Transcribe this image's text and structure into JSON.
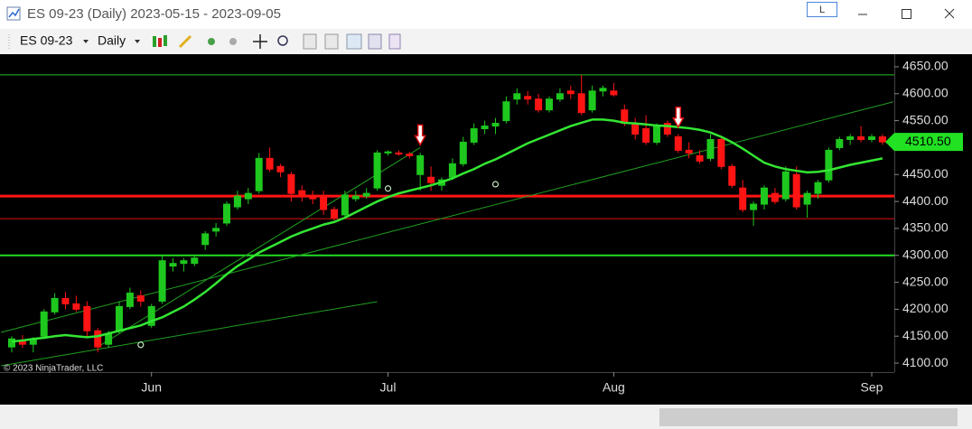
{
  "window": {
    "title": "ES 09-23 (Daily)  2023-05-15 - 2023-09-05",
    "button": "L"
  },
  "toolbar": {
    "instrument": "ES 09-23",
    "interval": "Daily"
  },
  "chart_data": {
    "type": "candlestick",
    "categories": [
      null,
      null,
      null,
      null,
      null,
      null,
      null,
      null,
      null,
      null,
      null,
      null,
      null,
      "Jun",
      null,
      null,
      null,
      null,
      null,
      null,
      null,
      null,
      null,
      null,
      null,
      null,
      null,
      null,
      null,
      null,
      null,
      null,
      null,
      null,
      null,
      "Jul",
      null,
      null,
      null,
      null,
      null,
      null,
      null,
      null,
      null,
      null,
      null,
      null,
      null,
      null,
      null,
      null,
      null,
      null,
      null,
      null,
      "Aug",
      null,
      null,
      null,
      null,
      null,
      null,
      null,
      null,
      null,
      null,
      null,
      null,
      null,
      null,
      null,
      null,
      null,
      null,
      null,
      null,
      null,
      null,
      null,
      "Sep",
      null
    ],
    "series": {
      "open": [
        4130,
        4140,
        4135,
        4150,
        4195,
        4220,
        4210,
        4205,
        4160,
        4135,
        4160,
        4205,
        4225,
        4170,
        4215,
        4280,
        4285,
        4285,
        4320,
        4345,
        4360,
        4390,
        4405,
        4420,
        4480,
        4465,
        4450,
        4420,
        4410,
        4410,
        4385,
        4375,
        4405,
        4410,
        4425,
        4490,
        4490,
        4488,
        4450,
        4445,
        4430,
        4445,
        4470,
        4510,
        4535,
        4540,
        4550,
        4590,
        4595,
        4590,
        4570,
        4590,
        4605,
        4600,
        4570,
        4605,
        4605,
        4570,
        4545,
        4535,
        4510,
        4545,
        4520,
        4495,
        4485,
        4480,
        4515,
        4465,
        4425,
        4385,
        4395,
        4415,
        4405,
        4450,
        4395,
        4415,
        4440,
        4500,
        4515,
        4520,
        4515,
        4520
      ],
      "high": [
        4150,
        4152,
        4148,
        4200,
        4230,
        4232,
        4225,
        4215,
        4165,
        4160,
        4215,
        4240,
        4235,
        4210,
        4300,
        4295,
        4295,
        4300,
        4345,
        4360,
        4400,
        4420,
        4425,
        4490,
        4500,
        4470,
        4455,
        4430,
        4420,
        4420,
        4390,
        4420,
        4420,
        4425,
        4495,
        4495,
        4495,
        4492,
        4490,
        4465,
        4445,
        4480,
        4520,
        4545,
        4550,
        4555,
        4595,
        4610,
        4605,
        4600,
        4595,
        4610,
        4615,
        4635,
        4615,
        4615,
        4620,
        4580,
        4555,
        4560,
        4545,
        4550,
        4525,
        4510,
        4495,
        4525,
        4520,
        4470,
        4440,
        4400,
        4430,
        4425,
        4465,
        4465,
        4420,
        4440,
        4500,
        4520,
        4525,
        4540,
        4525,
        4525
      ],
      "low": [
        4120,
        4128,
        4120,
        4145,
        4190,
        4200,
        4195,
        4150,
        4120,
        4128,
        4155,
        4200,
        4205,
        4165,
        4210,
        4270,
        4270,
        4280,
        4310,
        4335,
        4355,
        4385,
        4395,
        4415,
        4455,
        4445,
        4400,
        4400,
        4395,
        4375,
        4365,
        4370,
        4400,
        4405,
        4420,
        4485,
        4485,
        4480,
        4420,
        4420,
        4420,
        4440,
        4465,
        4505,
        4525,
        4525,
        4545,
        4580,
        4580,
        4565,
        4565,
        4585,
        4590,
        4560,
        4565,
        4595,
        4595,
        4540,
        4515,
        4505,
        4505,
        4520,
        4490,
        4480,
        4470,
        4475,
        4460,
        4425,
        4380,
        4355,
        4385,
        4395,
        4400,
        4385,
        4370,
        4405,
        4435,
        4495,
        4505,
        4510,
        4510,
        4505
      ],
      "close": [
        4145,
        4135,
        4145,
        4195,
        4220,
        4210,
        4200,
        4160,
        4130,
        4155,
        4205,
        4230,
        4215,
        4205,
        4290,
        4285,
        4290,
        4295,
        4340,
        4350,
        4395,
        4410,
        4415,
        4480,
        4460,
        4455,
        4415,
        4410,
        4405,
        4385,
        4370,
        4412,
        4410,
        4415,
        4490,
        4492,
        4488,
        4485,
        4485,
        4435,
        4440,
        4470,
        4510,
        4535,
        4540,
        4545,
        4585,
        4600,
        4590,
        4570,
        4590,
        4600,
        4600,
        4565,
        4605,
        4610,
        4598,
        4545,
        4525,
        4510,
        4540,
        4525,
        4495,
        4490,
        4475,
        4515,
        4465,
        4430,
        4385,
        4395,
        4425,
        4400,
        4455,
        4390,
        4415,
        4435,
        4495,
        4515,
        4520,
        4515,
        4520,
        4510.5
      ]
    },
    "up_color": "#1ec81e",
    "down_color": "#ff1414",
    "ylim": [
      4085,
      4670
    ],
    "yticks": [
      {
        "value": 4100,
        "label": "4100.00"
      },
      {
        "value": 4150,
        "label": "4150.00"
      },
      {
        "value": 4200,
        "label": "4200.00"
      },
      {
        "value": 4250,
        "label": "4250.00"
      },
      {
        "value": 4300,
        "label": "4300.00"
      },
      {
        "value": 4350,
        "label": "4350.00"
      },
      {
        "value": 4400,
        "label": "4400.00"
      },
      {
        "value": 4450,
        "label": "4450.00"
      },
      {
        "value": 4500,
        "label": "4500.00"
      },
      {
        "value": 4550,
        "label": "4550.00"
      },
      {
        "value": 4600,
        "label": "4600.00"
      },
      {
        "value": 4650,
        "label": "4650.00"
      }
    ],
    "moving_average": {
      "color": "#33e633",
      "values": [
        4140,
        4142,
        4145,
        4147,
        4150,
        4152,
        4150,
        4148,
        4150,
        4155,
        4160,
        4165,
        4170,
        4178,
        4185,
        4195,
        4205,
        4218,
        4232,
        4248,
        4265,
        4280,
        4292,
        4305,
        4315,
        4325,
        4335,
        4343,
        4350,
        4357,
        4362,
        4370,
        4380,
        4390,
        4400,
        4408,
        4415,
        4420,
        4425,
        4430,
        4436,
        4443,
        4452,
        4460,
        4470,
        4478,
        4488,
        4498,
        4508,
        4516,
        4524,
        4532,
        4540,
        4546,
        4552,
        4552,
        4550,
        4546,
        4545,
        4543,
        4541,
        4540,
        4538,
        4536,
        4533,
        4528,
        4520,
        4510,
        4498,
        4485,
        4472,
        4465,
        4460,
        4457,
        4454,
        4455,
        4458,
        4463,
        4468,
        4472,
        4476,
        4480
      ]
    },
    "levels": [
      {
        "value": 4635,
        "color": "#1fbf1f",
        "width": 1
      },
      {
        "value": 4410,
        "color": "#ff1414",
        "width": 3
      },
      {
        "value": 4368,
        "color": "#e01010",
        "width": 1
      },
      {
        "value": 4300,
        "color": "#22dd22",
        "width": 2
      }
    ],
    "trend_lines": [
      {
        "x": [
          -1,
          82
        ],
        "y": [
          4157,
          4585
        ],
        "color": "#1f9f1f"
      },
      {
        "x": [
          -1,
          34
        ],
        "y": [
          4095,
          4214
        ],
        "color": "#1f9f1f"
      },
      {
        "x": [
          8,
          38
        ],
        "y": [
          4130,
          4500
        ],
        "color": "#1f9f1f"
      }
    ],
    "dots": [
      {
        "x": 12,
        "y": 4134
      },
      {
        "x": 35,
        "y": 4424
      },
      {
        "x": 45,
        "y": 4432
      }
    ],
    "arrows": [
      {
        "x": 38,
        "y": 4505
      },
      {
        "x": 62,
        "y": 4538
      }
    ],
    "last_price": {
      "value": 4510.5,
      "label": "4510.50"
    },
    "copyright": "© 2023 NinjaTrader, LLC"
  }
}
